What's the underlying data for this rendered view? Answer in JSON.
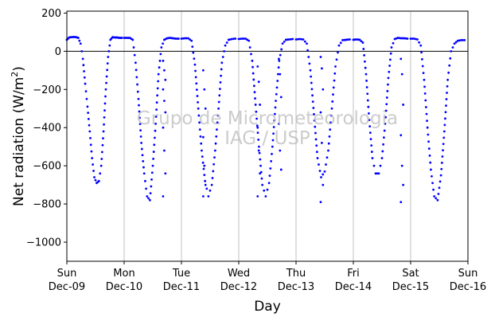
{
  "chart_data": {
    "type": "scatter",
    "xlabel": "Day",
    "ylabel_main": "Net radiation (W/m",
    "ylabel_sup": "2",
    "ylabel_tail": ")",
    "ylim": [
      -1100,
      210
    ],
    "xlim": [
      0,
      7
    ],
    "yticks": [
      200,
      0,
      -200,
      -400,
      -600,
      -800,
      -1000
    ],
    "ytick_labels": [
      "200",
      "0",
      "−200",
      "−400",
      "−600",
      "−800",
      "−1000"
    ],
    "xticks": [
      {
        "day": "Sun",
        "date": "Dec-09"
      },
      {
        "day": "Mon",
        "date": "Dec-10"
      },
      {
        "day": "Tue",
        "date": "Dec-11"
      },
      {
        "day": "Wed",
        "date": "Dec-12"
      },
      {
        "day": "Thu",
        "date": "Dec-13"
      },
      {
        "day": "Fri",
        "date": "Dec-14"
      },
      {
        "day": "Sat",
        "date": "Dec-15"
      },
      {
        "day": "Sun",
        "date": "Dec-16"
      }
    ],
    "grid": "vertical",
    "zero_line": true,
    "marker_color": "#0000ff",
    "watermark": [
      "Grupo de Micrometeorologia",
      "IAG / USP"
    ],
    "night_base": [
      70,
      70,
      68,
      68,
      66,
      62,
      68,
      58
    ],
    "series": [
      {
        "daily_envelope": [
          {
            "day_offset": 0.0,
            "values": [
              60,
              72,
              74,
              75,
              74,
              70,
              40,
              -40,
              -170,
              -290,
              -420,
              -560,
              -660,
              -690,
              -680,
              -600,
              -420,
              -200,
              -30,
              60,
              74,
              72,
              72,
              70,
              70
            ]
          },
          {
            "day_offset": 1.0,
            "values": [
              70,
              70,
              70,
              60,
              -60,
              -250,
              -480,
              -640,
              -760,
              -780,
              -600,
              -380,
              -120,
              20,
              60,
              68,
              70,
              68,
              66,
              66
            ]
          },
          {
            "day_offset": 2.0,
            "values": [
              66,
              68,
              68,
              55,
              -70,
              -300,
              -520,
              -680,
              -760,
              -700,
              -520,
              -300,
              -60,
              30,
              60,
              64,
              66
            ]
          },
          {
            "day_offset": 3.0,
            "values": [
              64,
              66,
              66,
              55,
              -50,
              -280,
              -500,
              -700,
              -760,
              -690,
              -500,
              -260,
              -50,
              40,
              60,
              62,
              64
            ]
          },
          {
            "day_offset": 4.0,
            "values": [
              62,
              64,
              62,
              40,
              -100,
              -330,
              -560,
              -660,
              -630,
              -520,
              -300,
              -80,
              30,
              58,
              60,
              62
            ]
          },
          {
            "day_offset": 5.0,
            "values": [
              60,
              62,
              60,
              45,
              -120,
              -360,
              -560,
              -640,
              -640,
              -560,
              -380,
              -140,
              20,
              64,
              70,
              68,
              68,
              66
            ]
          },
          {
            "day_offset": 6.0,
            "values": [
              66,
              66,
              62,
              30,
              -150,
              -400,
              -620,
              -760,
              -780,
              -650,
              -420,
              -150,
              0,
              40,
              55,
              58,
              58
            ]
          }
        ],
        "scatter_clusters": [
          {
            "x": 1.7,
            "values": [
              -50,
              -100,
              -150,
              -200,
              -260,
              -320,
              -400,
              -520,
              -640,
              -760
            ]
          },
          {
            "x": 2.4,
            "values": [
              -100,
              -200,
              -300,
              -450,
              -600,
              -700,
              -760
            ]
          },
          {
            "x": 3.35,
            "values": [
              -80,
              -160,
              -280,
              -400,
              -520,
              -640,
              -760
            ]
          },
          {
            "x": 3.72,
            "values": [
              -40,
              -120,
              -240,
              -380,
              -520,
              -620
            ]
          },
          {
            "x": 4.45,
            "values": [
              -30,
              -90,
              -200,
              -320,
              -480,
              -700,
              -790
            ]
          },
          {
            "x": 5.85,
            "values": [
              -40,
              -120,
              -280,
              -440,
              -600,
              -700,
              -790
            ]
          }
        ]
      }
    ]
  }
}
